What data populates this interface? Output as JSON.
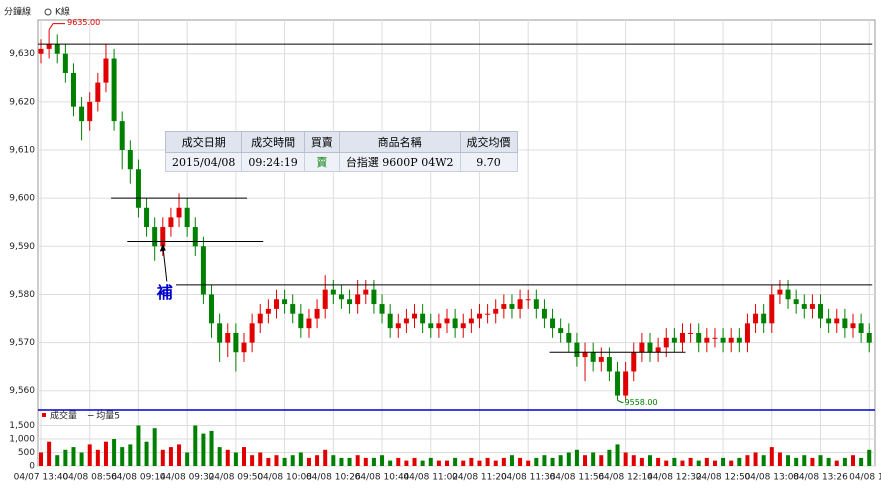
{
  "header": {
    "mode_1": "分鐘線",
    "mode_2": "K線"
  },
  "chart_data": {
    "type": "candlestick",
    "categories": [
      "04/07 13:40",
      null,
      null,
      null,
      null,
      null,
      "04/08 08:56",
      null,
      null,
      null,
      null,
      null,
      "04/08 09:14",
      null,
      null,
      null,
      null,
      null,
      "04/08 09:32",
      null,
      null,
      null,
      null,
      null,
      "04/08 09:50",
      null,
      null,
      null,
      null,
      null,
      "04/08 10:08",
      null,
      null,
      null,
      null,
      null,
      "04/08 10:26",
      null,
      null,
      null,
      null,
      null,
      "04/08 10:44",
      null,
      null,
      null,
      null,
      null,
      "04/08 11:02",
      null,
      null,
      null,
      null,
      null,
      "04/08 11:20",
      null,
      null,
      null,
      null,
      null,
      "04/08 11:38",
      null,
      null,
      null,
      null,
      null,
      "04/08 11:56",
      null,
      null,
      null,
      null,
      null,
      "04/08 12:14",
      null,
      null,
      null,
      null,
      null,
      "04/08 12:32",
      null,
      null,
      null,
      null,
      null,
      "04/08 12:50",
      null,
      null,
      null,
      null,
      null,
      "04/08 13:08",
      null,
      null,
      null,
      null,
      null,
      "04/08 13:26",
      null,
      null,
      null,
      null,
      null,
      "04/08 13"
    ],
    "open": [
      9630,
      9631,
      9632,
      9630,
      9626,
      9619,
      9616,
      9620,
      9624,
      9629,
      9616,
      9610,
      9606,
      9598,
      9594,
      9590,
      9594,
      9596,
      9598,
      9594,
      9590,
      9580,
      9574,
      9570,
      9572,
      9568,
      9570,
      9574,
      9576,
      9577,
      9579,
      9578,
      9576,
      9573,
      9575,
      9577,
      9581,
      9580,
      9579,
      9578,
      9580,
      9581,
      9578,
      9576,
      9573,
      9574,
      9575,
      9576,
      9574,
      9573,
      9574,
      9575,
      9573,
      9574,
      9575,
      9576,
      9576,
      9577,
      9578,
      9577,
      9579,
      9579,
      9577,
      9575,
      9573,
      9572,
      9570,
      9567,
      9568,
      9566,
      9567,
      9564,
      9559,
      9564,
      9568,
      9570,
      9568,
      9569,
      9571,
      9570,
      9572,
      9572,
      9570,
      9571,
      9571,
      9570,
      9571,
      9570,
      9574,
      9576,
      9574,
      9580,
      9581,
      9579,
      9578,
      9577,
      9578,
      9575,
      9574,
      9575,
      9573,
      9574,
      9572
    ],
    "high": [
      9633,
      9635,
      9634,
      9632,
      9628,
      9621,
      9622,
      9626,
      9632,
      9631,
      9618,
      9612,
      9608,
      9600,
      9596,
      9596,
      9598,
      9601,
      9600,
      9596,
      9592,
      9582,
      9576,
      9574,
      9574,
      9572,
      9576,
      9578,
      9579,
      9581,
      9581,
      9580,
      9578,
      9577,
      9579,
      9584,
      9583,
      9582,
      9581,
      9583,
      9583,
      9583,
      9580,
      9578,
      9576,
      9577,
      9578,
      9578,
      9576,
      9576,
      9577,
      9577,
      9576,
      9577,
      9578,
      9578,
      9579,
      9580,
      9580,
      9581,
      9581,
      9581,
      9579,
      9577,
      9575,
      9574,
      9572,
      9570,
      9570,
      9569,
      9569,
      9566,
      9566,
      9570,
      9572,
      9572,
      9571,
      9573,
      9573,
      9574,
      9574,
      9574,
      9573,
      9573,
      9573,
      9573,
      9573,
      9576,
      9578,
      9578,
      9582,
      9583,
      9583,
      9581,
      9580,
      9580,
      9580,
      9577,
      9577,
      9577,
      9576,
      9576,
      9574
    ],
    "low": [
      9628,
      9629,
      9628,
      9624,
      9617,
      9612,
      9614,
      9618,
      9622,
      9614,
      9606,
      9603,
      9596,
      9592,
      9587,
      9588,
      9592,
      9594,
      9592,
      9588,
      9578,
      9571,
      9566,
      9567,
      9564,
      9566,
      9568,
      9572,
      9574,
      9575,
      9576,
      9574,
      9571,
      9571,
      9573,
      9575,
      9578,
      9577,
      9576,
      9576,
      9578,
      9576,
      9574,
      9571,
      9571,
      9572,
      9573,
      9572,
      9571,
      9571,
      9572,
      9571,
      9571,
      9572,
      9573,
      9574,
      9574,
      9575,
      9575,
      9575,
      9577,
      9575,
      9573,
      9571,
      9570,
      9568,
      9565,
      9562,
      9564,
      9564,
      9562,
      9558,
      9558,
      9562,
      9566,
      9566,
      9566,
      9567,
      9568,
      9568,
      9570,
      9568,
      9568,
      9569,
      9568,
      9568,
      9568,
      9568,
      9572,
      9572,
      9572,
      9578,
      9577,
      9576,
      9575,
      9575,
      9573,
      9572,
      9572,
      9571,
      9571,
      9570,
      9568
    ],
    "close": [
      9631,
      9632,
      9630,
      9626,
      9619,
      9616,
      9620,
      9624,
      9629,
      9616,
      9610,
      9606,
      9598,
      9594,
      9590,
      9594,
      9596,
      9598,
      9594,
      9590,
      9580,
      9574,
      9570,
      9572,
      9568,
      9570,
      9574,
      9576,
      9577,
      9579,
      9578,
      9576,
      9573,
      9575,
      9577,
      9581,
      9580,
      9579,
      9578,
      9580,
      9581,
      9578,
      9576,
      9573,
      9574,
      9575,
      9576,
      9574,
      9573,
      9574,
      9575,
      9573,
      9574,
      9575,
      9576,
      9576,
      9577,
      9578,
      9577,
      9579,
      9579,
      9577,
      9575,
      9573,
      9572,
      9570,
      9567,
      9568,
      9566,
      9567,
      9564,
      9559,
      9564,
      9568,
      9570,
      9568,
      9569,
      9571,
      9570,
      9572,
      9572,
      9570,
      9571,
      9571,
      9570,
      9571,
      9570,
      9574,
      9576,
      9574,
      9580,
      9581,
      9579,
      9578,
      9577,
      9578,
      9575,
      9574,
      9575,
      9573,
      9574,
      9572,
      9570
    ],
    "up_color": "#e00000",
    "down_color": "#008000",
    "ylim": [
      9556,
      9637
    ],
    "yticks": [
      {
        "value": 9560,
        "label": "9,560"
      },
      {
        "value": 9570,
        "label": "9,570"
      },
      {
        "value": 9580,
        "label": "9,580"
      },
      {
        "value": 9590,
        "label": "9,590"
      },
      {
        "value": 9600,
        "label": "9,600"
      },
      {
        "value": 9610,
        "label": "9,610"
      },
      {
        "value": 9620,
        "label": "9,620"
      },
      {
        "value": 9630,
        "label": "9,630"
      }
    ],
    "grid": true,
    "max_label": {
      "value": 9635,
      "label": "9635.00",
      "index": 1
    },
    "min_label": {
      "value": 9558,
      "label": "9558.00",
      "index": 71
    },
    "hlines": [
      {
        "value": 9632,
        "from": 0,
        "to": 102
      },
      {
        "value": 9600,
        "from": 9,
        "to": 25
      },
      {
        "value": 9591,
        "from": 11,
        "to": 27
      },
      {
        "value": 9582,
        "from": 17,
        "to": 102
      },
      {
        "value": 9568,
        "from": 63,
        "to": 79
      }
    ],
    "annotation": {
      "text": "補",
      "index": 15,
      "value": 9591
    },
    "volume": {
      "legend_1": "成交量",
      "legend_2": "─ 均量5",
      "values": [
        500,
        900,
        400,
        600,
        700,
        500,
        800,
        600,
        900,
        1000,
        700,
        800,
        1500,
        900,
        1400,
        600,
        700,
        800,
        500,
        1500,
        1200,
        1300,
        700,
        600,
        500,
        700,
        400,
        500,
        300,
        400,
        300,
        400,
        500,
        300,
        400,
        600,
        400,
        300,
        300,
        400,
        300,
        300,
        400,
        200,
        300,
        200,
        300,
        200,
        300,
        200,
        200,
        300,
        200,
        300,
        200,
        300,
        200,
        300,
        400,
        300,
        200,
        300,
        400,
        300,
        400,
        500,
        600,
        400,
        500,
        400,
        600,
        800,
        500,
        400,
        300,
        400,
        300,
        200,
        300,
        200,
        300,
        200,
        300,
        200,
        300,
        200,
        300,
        400,
        500,
        400,
        700,
        500,
        400,
        300,
        400,
        300,
        400,
        300,
        200,
        300,
        400,
        300,
        600
      ],
      "ylim": [
        0,
        2000
      ],
      "yticks": [
        0,
        500,
        {
          "value": 1000,
          "label": "1,000"
        },
        {
          "value": 1500,
          "label": "1,500"
        }
      ]
    }
  },
  "trade_table": {
    "headers": [
      "成交日期",
      "成交時間",
      "買賣",
      "商品名稱",
      "成交均價"
    ],
    "row": [
      "2015/04/08",
      "09:24:19",
      "賣",
      "台指選 9600P 04W2",
      "9.70"
    ]
  }
}
